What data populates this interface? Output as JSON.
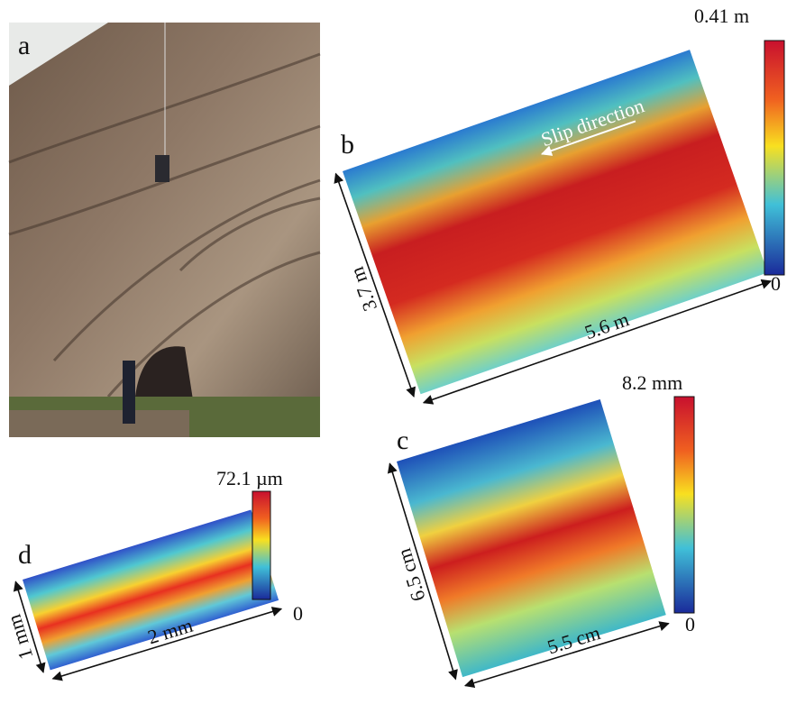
{
  "panels": [
    {
      "label": "a"
    },
    {
      "label": "b",
      "colorbar_max": "0.41 m",
      "colorbar_min": 0,
      "annotation": "Slip direction",
      "height": "3.7 m",
      "width": "5.6 m"
    },
    {
      "label": "c",
      "colorbar_max": "8.2 mm",
      "colorbar_min": 0,
      "height": "6.5 cm",
      "width": "5.5 cm"
    },
    {
      "label": "d",
      "colorbar_max": "72.1 µm",
      "colorbar_min": 0,
      "height": "1 mm",
      "width": "2 mm"
    }
  ]
}
